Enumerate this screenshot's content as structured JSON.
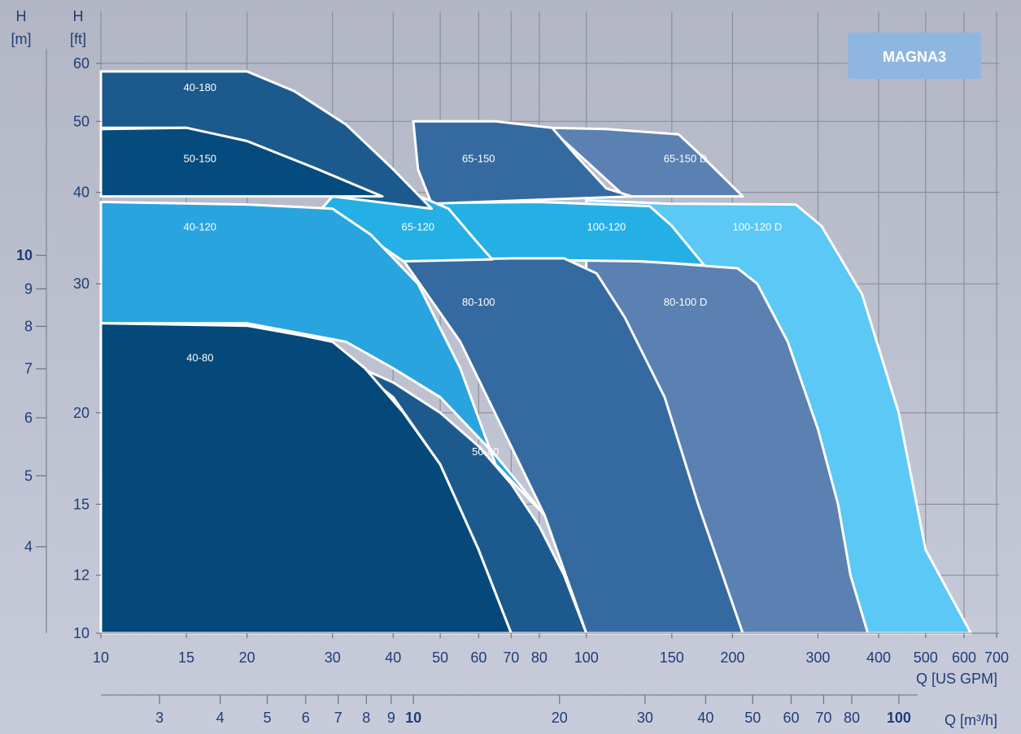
{
  "chart_data": {
    "type": "area",
    "title": "MAGNA3",
    "x_scale": "log",
    "y_scale": "log",
    "x_axis_gpm": {
      "label": "Q [US GPM]",
      "range": [
        10,
        700
      ],
      "ticks": [
        10,
        15,
        20,
        30,
        40,
        50,
        60,
        70,
        80,
        100,
        150,
        200,
        300,
        400,
        500,
        600,
        700
      ],
      "tick_labels": [
        "10",
        "15",
        "20",
        "30",
        "40",
        "50",
        "60",
        "70",
        "80",
        "100",
        "150",
        "200",
        "300",
        "400",
        "500",
        "600",
        "700"
      ]
    },
    "x_axis_m3h": {
      "label": "Q [m³/h]",
      "ticks": [
        3,
        4,
        5,
        6,
        7,
        8,
        9,
        10,
        20,
        30,
        40,
        50,
        60,
        70,
        80,
        100
      ],
      "tick_labels": [
        "3",
        "4",
        "5",
        "6",
        "7",
        "8",
        "9",
        "10",
        "20",
        "30",
        "40",
        "50",
        "60",
        "70",
        "80",
        "100"
      ],
      "bold_ticks": [
        10,
        100
      ]
    },
    "y_axis_ft": {
      "label_top": "H",
      "label_unit": "[ft]",
      "range": [
        10,
        60
      ],
      "ticks": [
        10,
        12,
        15,
        20,
        30,
        40,
        50,
        60
      ],
      "tick_labels": [
        "10",
        "12",
        "15",
        "20",
        "30",
        "40",
        "50",
        "60"
      ]
    },
    "y_axis_m": {
      "label_top": "H",
      "label_unit": "[m]",
      "ticks": [
        4,
        5,
        6,
        7,
        8,
        9,
        10
      ],
      "tick_labels": [
        "4",
        "5",
        "6",
        "7",
        "8",
        "9",
        "10"
      ],
      "bold_ticks": [
        10
      ]
    },
    "grid": true,
    "x_grid_lines": [
      10,
      15,
      20,
      30,
      40,
      50,
      60,
      70,
      80,
      100,
      150,
      200,
      300,
      400,
      500,
      600,
      700
    ],
    "y_grid_lines": [
      10,
      12,
      15,
      20,
      30,
      40,
      50,
      60
    ],
    "series": [
      {
        "name": "100-120 D",
        "color": "#5bc8f5",
        "label_at": [
          225,
          35.5
        ],
        "boundary": [
          [
            100,
            39
          ],
          [
            148,
            38.6
          ],
          [
            270,
            38.5
          ],
          [
            305,
            36
          ],
          [
            370,
            29
          ],
          [
            440,
            20
          ],
          [
            500,
            13
          ],
          [
            620,
            10
          ],
          [
            100,
            10
          ]
        ]
      },
      {
        "name": "65-150 D",
        "color": "#5b80b2",
        "label_at": [
          160,
          44
        ],
        "boundary": [
          [
            84,
            49
          ],
          [
            110,
            48.8
          ],
          [
            155,
            48
          ],
          [
            172,
            45
          ],
          [
            210,
            39.5
          ],
          [
            120,
            39.5
          ]
        ]
      },
      {
        "name": "80-100 D",
        "color": "#5b80b2",
        "label_at": [
          160,
          28
        ],
        "boundary": [
          [
            100,
            32.5
          ],
          [
            150,
            32
          ],
          [
            205,
            31.5
          ],
          [
            225,
            30
          ],
          [
            260,
            25
          ],
          [
            300,
            19
          ],
          [
            330,
            15
          ],
          [
            350,
            12
          ],
          [
            380,
            10
          ],
          [
            100,
            10
          ]
        ]
      },
      {
        "name": "100-120",
        "color": "#25b0e5",
        "label_at": [
          110,
          35.5
        ],
        "boundary": [
          [
            50,
            38.7
          ],
          [
            80,
            38.8
          ],
          [
            135,
            38.3
          ],
          [
            150,
            36
          ],
          [
            175,
            31.8
          ],
          [
            130,
            32.2
          ],
          [
            90,
            32.3
          ],
          [
            62,
            31.5
          ],
          [
            55,
            35
          ]
        ]
      },
      {
        "name": "80-100",
        "color": "#356aa0",
        "label_at": [
          60,
          28
        ],
        "boundary": [
          [
            42,
            32.3
          ],
          [
            70,
            32.5
          ],
          [
            90,
            32.5
          ],
          [
            105,
            31
          ],
          [
            120,
            27
          ],
          [
            145,
            21
          ],
          [
            170,
            15
          ],
          [
            210,
            10
          ],
          [
            100,
            10
          ],
          [
            82,
            14.5
          ],
          [
            70,
            18
          ],
          [
            55,
            25
          ]
        ]
      },
      {
        "name": "65-150",
        "color": "#356aa0",
        "label_at": [
          60,
          44
        ],
        "boundary": [
          [
            44,
            50
          ],
          [
            65,
            50
          ],
          [
            85,
            49
          ],
          [
            95,
            45
          ],
          [
            110,
            40.5
          ],
          [
            124,
            39.5
          ],
          [
            48,
            38.6
          ],
          [
            45,
            43
          ]
        ]
      },
      {
        "name": "65-120",
        "color": "#25b0e5",
        "label_at": [
          45,
          35.5
        ],
        "boundary": [
          [
            30,
            39.5
          ],
          [
            45,
            39.6
          ],
          [
            52,
            38
          ],
          [
            60,
            34
          ],
          [
            64,
            32.4
          ],
          [
            42,
            32.2
          ],
          [
            35,
            35
          ],
          [
            28,
            37.5
          ]
        ]
      },
      {
        "name": "40-180",
        "color": "#1c5a8e",
        "label_at": [
          16,
          55
        ],
        "boundary": [
          [
            10,
            58.5
          ],
          [
            20,
            58.5
          ],
          [
            25,
            55
          ],
          [
            32,
            49.5
          ],
          [
            40,
            43
          ],
          [
            48,
            38
          ],
          [
            30,
            39.5
          ],
          [
            21,
            45
          ],
          [
            15,
            49
          ],
          [
            10,
            49
          ]
        ]
      },
      {
        "name": "50-150",
        "color": "#064b7d",
        "label_at": [
          16,
          44
        ],
        "boundary": [
          [
            10,
            48.8
          ],
          [
            15,
            49
          ],
          [
            20,
            47
          ],
          [
            28,
            43
          ],
          [
            38,
            39.5
          ],
          [
            10,
            39.5
          ]
        ]
      },
      {
        "name": "40-120",
        "color": "#29a4df",
        "label_at": [
          16,
          35.5
        ],
        "boundary": [
          [
            10,
            38.8
          ],
          [
            20,
            38.5
          ],
          [
            30,
            38
          ],
          [
            36,
            35
          ],
          [
            45,
            30
          ],
          [
            55,
            23
          ],
          [
            65,
            17
          ],
          [
            82,
            14.5
          ],
          [
            65,
            17.5
          ],
          [
            50,
            21
          ],
          [
            40,
            23
          ],
          [
            32,
            25
          ],
          [
            20,
            26.5
          ],
          [
            10,
            26.5
          ]
        ]
      },
      {
        "name": "50-80",
        "color": "#1c5a8e",
        "label_at": [
          62,
          17.5
        ],
        "boundary": [
          [
            32,
            23.5
          ],
          [
            40,
            22
          ],
          [
            50,
            20
          ],
          [
            60,
            18
          ],
          [
            70,
            16
          ],
          [
            80,
            14
          ],
          [
            90,
            12
          ],
          [
            100,
            10
          ],
          [
            70,
            10
          ],
          [
            60,
            13
          ],
          [
            50,
            17
          ],
          [
            40,
            21
          ],
          [
            35,
            22.5
          ]
        ]
      },
      {
        "name": "40-80",
        "color": "#04497a",
        "label_at": [
          16,
          23.5
        ],
        "boundary": [
          [
            10,
            26.5
          ],
          [
            20,
            26.3
          ],
          [
            26,
            25.5
          ],
          [
            30,
            25
          ],
          [
            35,
            23
          ],
          [
            42,
            20
          ],
          [
            50,
            17
          ],
          [
            60,
            13
          ],
          [
            70,
            10
          ],
          [
            10,
            10
          ]
        ]
      }
    ]
  }
}
